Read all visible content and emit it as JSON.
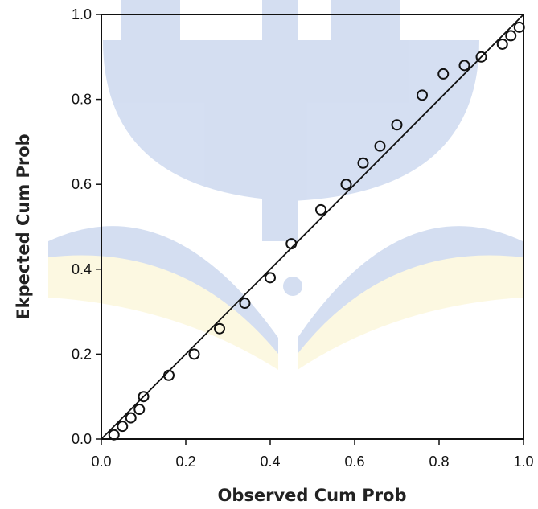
{
  "chart_data": {
    "type": "scatter",
    "title": "",
    "xlabel": "Observed Cum Prob",
    "ylabel": "Ekpected Cum Prob",
    "xlim": [
      0.0,
      1.0
    ],
    "ylim": [
      0.0,
      1.0
    ],
    "x_ticks": [
      "0.0",
      "0.2",
      "0.4",
      "0.6",
      "0.8",
      "1.0"
    ],
    "y_ticks": [
      "0.0",
      "0.2",
      "0.4",
      "0.6",
      "0.8",
      "1.0"
    ],
    "grid": false,
    "legend": "none",
    "reference_line": {
      "from": [
        0.0,
        0.0
      ],
      "to": [
        1.0,
        1.0
      ]
    },
    "points": [
      {
        "x": 0.03,
        "y": 0.01
      },
      {
        "x": 0.05,
        "y": 0.03
      },
      {
        "x": 0.07,
        "y": 0.05
      },
      {
        "x": 0.09,
        "y": 0.07
      },
      {
        "x": 0.1,
        "y": 0.1
      },
      {
        "x": 0.16,
        "y": 0.15
      },
      {
        "x": 0.22,
        "y": 0.2
      },
      {
        "x": 0.28,
        "y": 0.26
      },
      {
        "x": 0.34,
        "y": 0.32
      },
      {
        "x": 0.4,
        "y": 0.38
      },
      {
        "x": 0.45,
        "y": 0.46
      },
      {
        "x": 0.52,
        "y": 0.54
      },
      {
        "x": 0.58,
        "y": 0.6
      },
      {
        "x": 0.62,
        "y": 0.65
      },
      {
        "x": 0.66,
        "y": 0.69
      },
      {
        "x": 0.7,
        "y": 0.74
      },
      {
        "x": 0.76,
        "y": 0.81
      },
      {
        "x": 0.81,
        "y": 0.86
      },
      {
        "x": 0.86,
        "y": 0.88
      },
      {
        "x": 0.9,
        "y": 0.9
      },
      {
        "x": 0.95,
        "y": 0.93
      },
      {
        "x": 0.97,
        "y": 0.95
      },
      {
        "x": 0.99,
        "y": 0.97
      }
    ]
  },
  "colors": {
    "axis": "#111111",
    "marker_stroke": "#111111",
    "line": "#111111",
    "watermark_blue": "#3f6fc4",
    "watermark_yellow": "#f6e27a"
  }
}
